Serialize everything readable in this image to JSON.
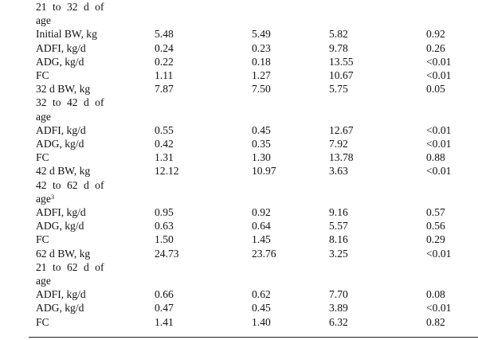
{
  "rows": [
    {
      "kind": "section",
      "line1": "21 to 32 d of",
      "line2": "age"
    },
    {
      "kind": "data",
      "label": "Initial BW, kg",
      "v1": "5.48",
      "v2": "5.49",
      "v3": "5.82",
      "v4": "0.92"
    },
    {
      "kind": "data",
      "label": "ADFI, kg/d",
      "v1": "0.24",
      "v2": "0.23",
      "v3": "9.78",
      "v4": "0.26"
    },
    {
      "kind": "data",
      "label": "ADG, kg/d",
      "v1": "0.22",
      "v2": "0.18",
      "v3": "13.55",
      "v4": "<0.01"
    },
    {
      "kind": "data",
      "label": "FC",
      "v1": "1.11",
      "v2": "1.27",
      "v3": "10.67",
      "v4": "<0.01"
    },
    {
      "kind": "data",
      "label": "32 d BW, kg",
      "v1": "7.87",
      "v2": "7.50",
      "v3": "5.75",
      "v4": "0.05"
    },
    {
      "kind": "section",
      "line1": "32 to 42 d of",
      "line2": "age"
    },
    {
      "kind": "data",
      "label": "ADFI, kg/d",
      "v1": "0.55",
      "v2": "0.45",
      "v3": "12.67",
      "v4": "<0.01"
    },
    {
      "kind": "data",
      "label": "ADG, kg/d",
      "v1": "0.42",
      "v2": "0.35",
      "v3": "7.92",
      "v4": "<0.01"
    },
    {
      "kind": "data",
      "label": "FC",
      "v1": "1.31",
      "v2": "1.30",
      "v3": "13.78",
      "v4": "0.88"
    },
    {
      "kind": "data",
      "label": "42 d BW, kg",
      "v1": "12.12",
      "v2": "10.97",
      "v3": "3.63",
      "v4": "<0.01"
    },
    {
      "kind": "section",
      "line1": "42 to 62 d of",
      "line2": "age",
      "sup": "3"
    },
    {
      "kind": "data",
      "label": "ADFI, kg/d",
      "v1": "0.95",
      "v2": "0.92",
      "v3": "9.16",
      "v4": "0.57"
    },
    {
      "kind": "data",
      "label": "ADG, kg/d",
      "v1": "0.63",
      "v2": "0.64",
      "v3": "5.57",
      "v4": "0.56"
    },
    {
      "kind": "data",
      "label": "FC",
      "v1": "1.50",
      "v2": "1.45",
      "v3": "8.16",
      "v4": "0.29"
    },
    {
      "kind": "data",
      "label": "62 d BW, kg",
      "v1": "24.73",
      "v2": "23.76",
      "v3": "3.25",
      "v4": "<0.01"
    },
    {
      "kind": "section",
      "line1": "21 to 62 d of",
      "line2": "age"
    },
    {
      "kind": "data",
      "label": "ADFI, kg/d",
      "v1": "0.66",
      "v2": "0.62",
      "v3": "7.70",
      "v4": "0.08"
    },
    {
      "kind": "data",
      "label": "ADG, kg/d",
      "v1": "0.47",
      "v2": "0.45",
      "v3": "3.89",
      "v4": "<0.01"
    },
    {
      "kind": "data",
      "label": "FC",
      "v1": "1.41",
      "v2": "1.40",
      "v3": "6.32",
      "v4": "0.82"
    }
  ]
}
